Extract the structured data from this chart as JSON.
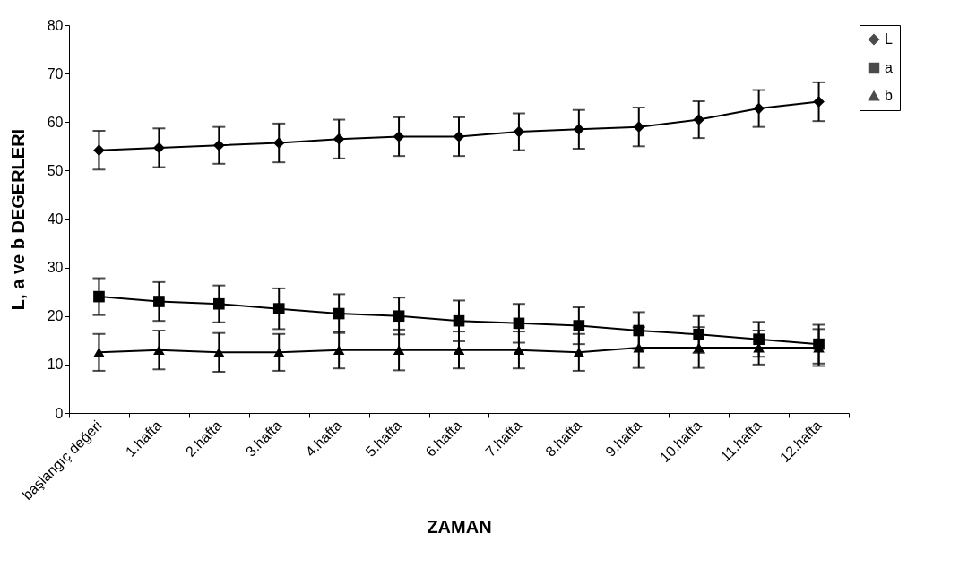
{
  "chart_data": {
    "type": "line",
    "xlabel": "ZAMAN",
    "ylabel": "L, a ve b DEGERLERI",
    "categories": [
      "başlangıç değeri",
      "1.hafta",
      "2.hafta",
      "3.hafta",
      "4.hafta",
      "5.hafta",
      "6.hafta",
      "7.hafta",
      "8.hafta",
      "9.hafta",
      "10.hafta",
      "11.hafta",
      "12.hafta"
    ],
    "series": [
      {
        "name": "L",
        "color": "#000000",
        "marker": "diamond",
        "values": [
          54.2,
          54.7,
          55.2,
          55.7,
          56.5,
          57,
          57,
          58,
          58.5,
          59,
          60.5,
          62.8,
          64.2
        ],
        "errors": [
          4,
          4,
          3.8,
          4,
          4,
          4,
          4,
          3.8,
          4,
          4,
          3.8,
          3.8,
          4
        ]
      },
      {
        "name": "a",
        "color": "#000000",
        "marker": "square",
        "values": [
          24,
          23,
          22.5,
          21.5,
          20.5,
          20,
          19,
          18.5,
          18,
          17,
          16.2,
          15.2,
          14.2
        ],
        "errors": [
          3.8,
          4,
          3.8,
          4.2,
          4,
          3.8,
          4.2,
          4,
          3.8,
          3.8,
          3.8,
          3.6,
          4
        ]
      },
      {
        "name": "b",
        "color": "#000000",
        "marker": "triangle",
        "values": [
          12.5,
          13,
          12.5,
          12.5,
          13,
          13,
          13,
          13,
          12.5,
          13.5,
          13.5,
          13.5,
          13.5
        ],
        "errors": [
          3.8,
          4,
          4,
          3.8,
          3.8,
          4.2,
          3.8,
          3.8,
          3.8,
          4.2,
          4.2,
          3.5,
          3.8
        ]
      }
    ],
    "ylim": [
      0,
      80
    ],
    "yticks": [
      0,
      10,
      20,
      30,
      40,
      50,
      60,
      70,
      80
    ],
    "grid": false,
    "legend": "right",
    "line_style": "solid"
  }
}
